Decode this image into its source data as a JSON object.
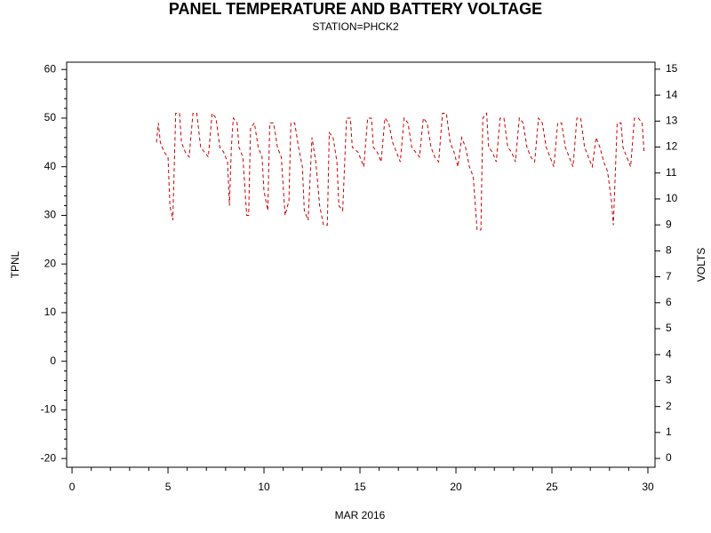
{
  "chart_data": {
    "type": "line",
    "title": "PANEL TEMPERATURE AND BATTERY VOLTAGE",
    "subtitle": "STATION=PHCK2",
    "x_label": "MAR 2016",
    "y_label": "TPNL",
    "y2_label": "VOLTS",
    "color": "#cc0000",
    "line_style": "dashed",
    "xlim": [
      -0.28,
      30.37
    ],
    "xticks": [
      0,
      5,
      10,
      15,
      20,
      25,
      30
    ],
    "ylim": [
      -21.8,
      61.5
    ],
    "yticks": [
      -20,
      -10,
      0,
      10,
      20,
      30,
      40,
      50,
      60
    ],
    "y2lim": [
      -0.34,
      15.27
    ],
    "y2ticks": [
      0,
      1,
      2,
      3,
      4,
      5,
      6,
      7,
      8,
      9,
      10,
      11,
      12,
      13,
      14,
      15
    ],
    "x": [
      4.4,
      4.5,
      4.6,
      4.8,
      5.0,
      5.1,
      5.25,
      5.4,
      5.6,
      5.7,
      5.9,
      6.1,
      6.3,
      6.5,
      6.7,
      6.9,
      7.1,
      7.3,
      7.5,
      7.7,
      7.9,
      8.1,
      8.2,
      8.3,
      8.4,
      8.6,
      8.7,
      8.9,
      9.1,
      9.2,
      9.3,
      9.5,
      9.7,
      9.9,
      10.0,
      10.2,
      10.3,
      10.5,
      10.7,
      10.9,
      11.1,
      11.3,
      11.4,
      11.6,
      11.8,
      12.0,
      12.1,
      12.3,
      12.5,
      12.7,
      12.9,
      13.1,
      13.3,
      13.4,
      13.6,
      13.8,
      13.9,
      14.1,
      14.3,
      14.5,
      14.6,
      14.9,
      15.2,
      15.4,
      15.6,
      15.7,
      15.9,
      16.1,
      16.3,
      16.5,
      16.7,
      16.9,
      17.1,
      17.3,
      17.5,
      17.7,
      17.9,
      18.1,
      18.3,
      18.5,
      18.7,
      18.9,
      19.1,
      19.3,
      19.5,
      19.7,
      19.9,
      20.1,
      20.3,
      20.5,
      20.7,
      20.9,
      21.1,
      21.3,
      21.4,
      21.6,
      21.7,
      21.9,
      22.1,
      22.3,
      22.5,
      22.7,
      22.9,
      23.1,
      23.3,
      23.5,
      23.7,
      23.9,
      24.1,
      24.3,
      24.5,
      24.7,
      24.9,
      25.1,
      25.3,
      25.5,
      25.7,
      25.9,
      26.1,
      26.3,
      26.5,
      26.7,
      26.9,
      27.1,
      27.3,
      27.5,
      27.7,
      27.9,
      28.1,
      28.2,
      28.4,
      28.6,
      28.7,
      28.9,
      29.1,
      29.3,
      29.5,
      29.7,
      29.8
    ],
    "values": [
      45,
      49,
      45,
      43,
      42,
      32,
      29,
      51,
      51,
      45,
      43,
      42,
      51,
      51,
      44,
      43,
      42,
      51,
      50,
      44,
      43,
      41,
      32,
      44,
      50,
      49,
      44,
      42,
      30,
      30,
      48,
      49,
      44,
      42,
      35,
      31,
      49,
      49,
      44,
      42,
      30,
      33,
      49,
      49,
      44,
      40,
      31,
      29,
      46,
      41,
      32,
      28,
      28,
      47,
      46,
      41,
      32,
      31,
      50,
      50,
      44,
      43,
      40,
      50,
      50,
      44,
      43,
      41,
      50,
      49,
      45,
      43,
      41,
      50,
      49,
      44,
      43,
      42,
      50,
      49,
      44,
      42,
      41,
      51,
      51,
      45,
      43,
      40,
      46,
      44,
      40,
      38,
      27,
      27,
      50,
      51,
      44,
      43,
      41,
      50,
      50,
      44,
      43,
      41,
      50,
      49,
      44,
      42,
      41,
      50,
      49,
      44,
      42,
      40,
      49,
      49,
      44,
      42,
      40,
      50,
      50,
      44,
      42,
      40,
      46,
      44,
      41,
      39,
      33,
      28,
      49,
      49,
      44,
      42,
      40,
      50,
      50,
      49,
      43
    ]
  }
}
